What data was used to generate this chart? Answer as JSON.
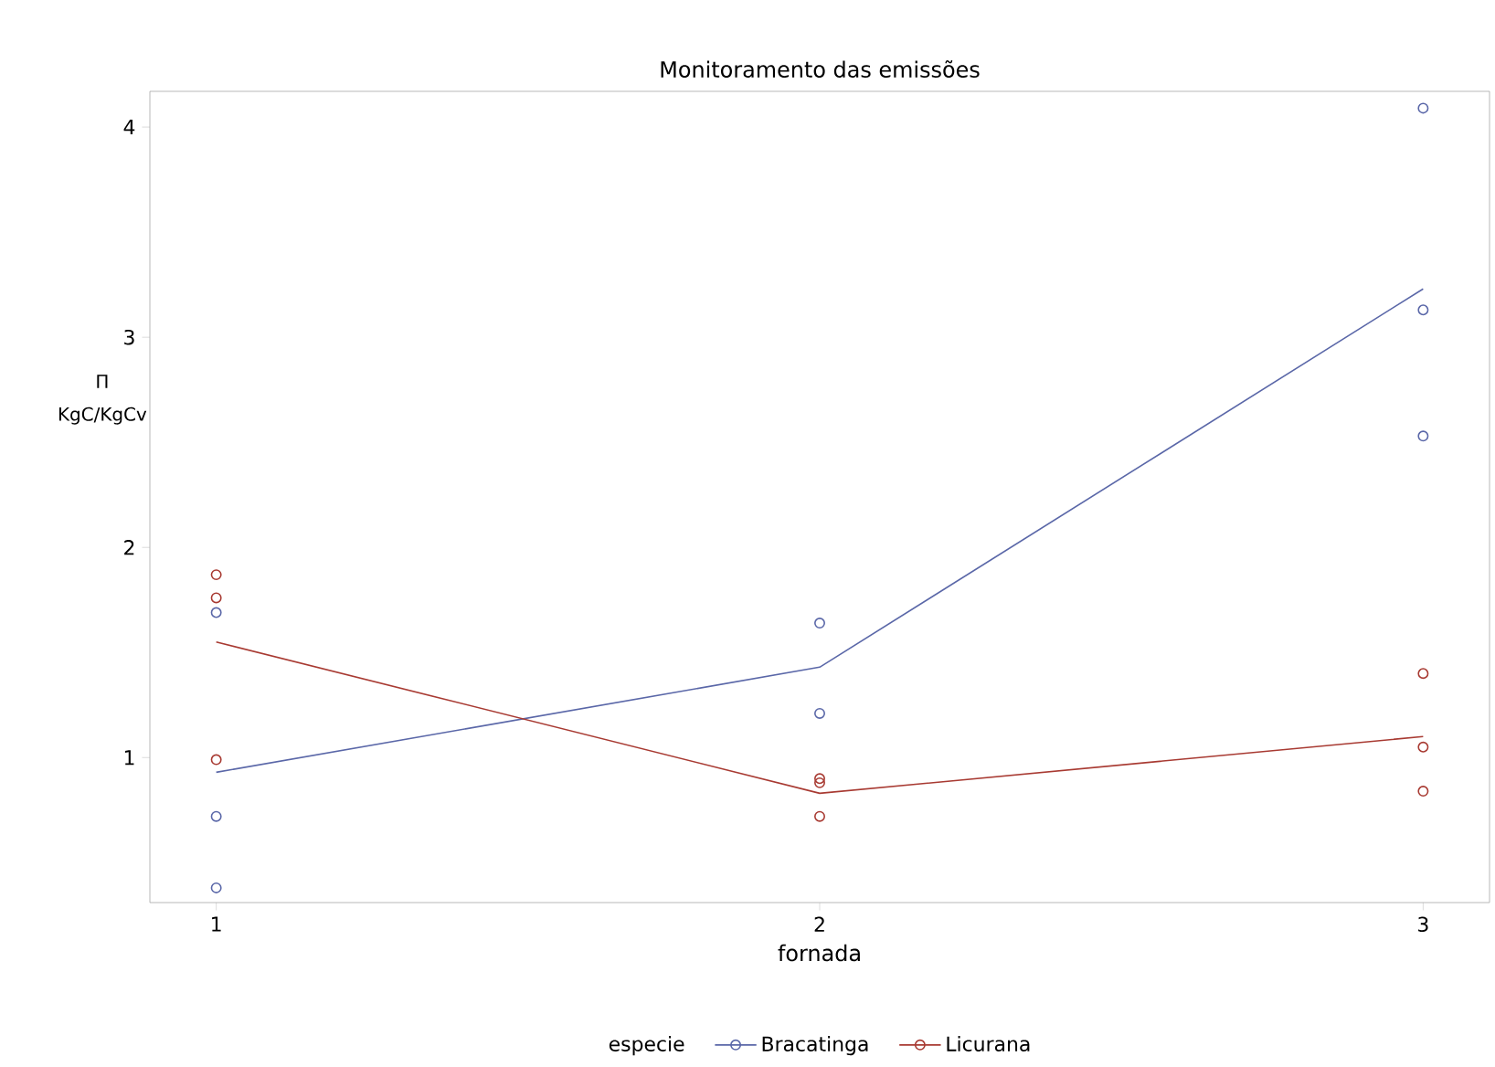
{
  "chart_data": {
    "type": "scatter",
    "title": "Monitoramento das emissões",
    "xlabel": "fornada",
    "ylabel": "Π KgC/KgCv",
    "legend_title": "especie",
    "legend": "bottom",
    "marker": "circle",
    "xlim": [
      0.89,
      3.11
    ],
    "xticks": [
      1,
      2,
      3
    ],
    "ylim": [
      0.31,
      4.17
    ],
    "yticks": [
      1,
      2,
      3,
      4
    ],
    "grid": false,
    "series": [
      {
        "name": "Bracatinga",
        "color": "#5a67a8",
        "x": [
          1,
          1,
          1,
          2,
          2,
          3,
          3,
          3
        ],
        "values": [
          1.69,
          0.72,
          0.38,
          1.64,
          1.21,
          4.09,
          3.13,
          2.53
        ]
      },
      {
        "type": "line",
        "color": "#5a67a8",
        "x": [
          1,
          2,
          3
        ],
        "values": [
          0.93,
          1.43,
          3.23
        ],
        "marker": "none"
      },
      {
        "name": "Licurana",
        "color": "#a83a32",
        "x": [
          1,
          1,
          1,
          2,
          2,
          2,
          3,
          3,
          3
        ],
        "values": [
          1.87,
          1.76,
          0.99,
          0.9,
          0.88,
          0.72,
          1.4,
          1.05,
          0.84
        ]
      },
      {
        "type": "line",
        "color": "#a83a32",
        "x": [
          1,
          2,
          3
        ],
        "values": [
          1.55,
          0.83,
          1.1
        ],
        "marker": "none"
      }
    ]
  }
}
